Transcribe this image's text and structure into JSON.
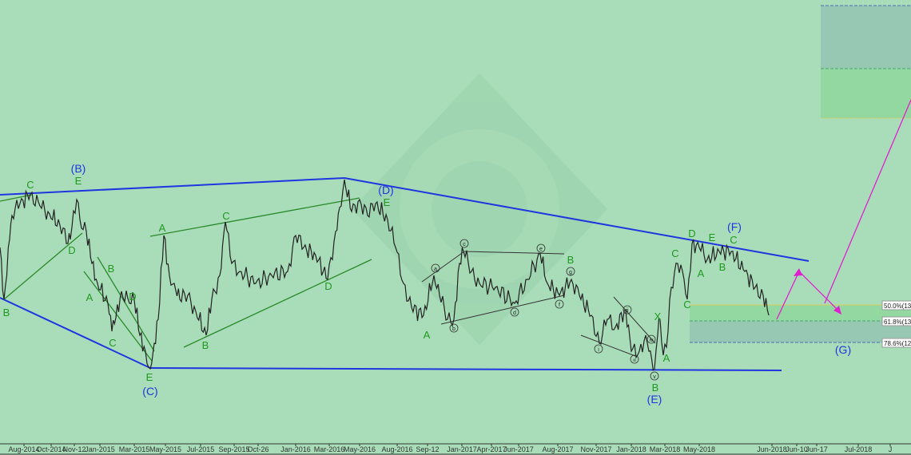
{
  "chart_data": {
    "type": "line",
    "title": "",
    "xlabel": "",
    "ylabel": "",
    "grid": false,
    "x_tick_labels": [
      "Aug-2014",
      "Oct-2014",
      "Nov-12",
      "Jan-2015",
      "Mar-2015",
      "May-2015",
      "Jul-2015",
      "Sep-2015",
      "Oct-26",
      "Jan-2016",
      "Mar-2016",
      "May-2016",
      "Aug-2016",
      "Sep-12",
      "Jan-2017",
      "Apr-2017",
      "Jun-2017",
      "Aug-2017",
      "Nov-2017",
      "Jan-2018",
      "Mar-2018",
      "May-2018",
      "Jun-2018",
      "Jun-10",
      "Jun-17",
      "Jul-2018",
      "J"
    ],
    "series": [
      {
        "values_note_free": true
      }
    ],
    "fib_levels": [
      {
        "label": "50.0%(13",
        "color": "#d8d060"
      },
      {
        "label": "61.8%(13",
        "color": "#4aa86a"
      },
      {
        "label": "78.6%(12",
        "color": "#4a70c0"
      }
    ],
    "wave_labels": {
      "major": [
        "(B)",
        "(C)",
        "(D)",
        "(E)",
        "(F)",
        "(G)"
      ],
      "minor": [
        "C",
        "E",
        "B",
        "D",
        "A",
        "B",
        "C",
        "D",
        "E",
        "A",
        "C",
        "B",
        "D",
        "E",
        "A",
        "B",
        "C",
        "A",
        "B",
        "C",
        "X",
        "A",
        "B",
        "C",
        "D",
        "E"
      ],
      "sub": [
        "a",
        "b",
        "c",
        "d",
        "e",
        "f",
        "g",
        "i",
        "ii",
        "iii",
        "iv",
        "v"
      ]
    },
    "colors": {
      "background": "#a9ddb9",
      "major_lines": "#1f35e0",
      "minor_lines": "#2a8a2a",
      "price": "#222222",
      "projection": "#e020d0",
      "major_text": "#1f35e0",
      "minor_text": "#1f9a1f"
    }
  }
}
